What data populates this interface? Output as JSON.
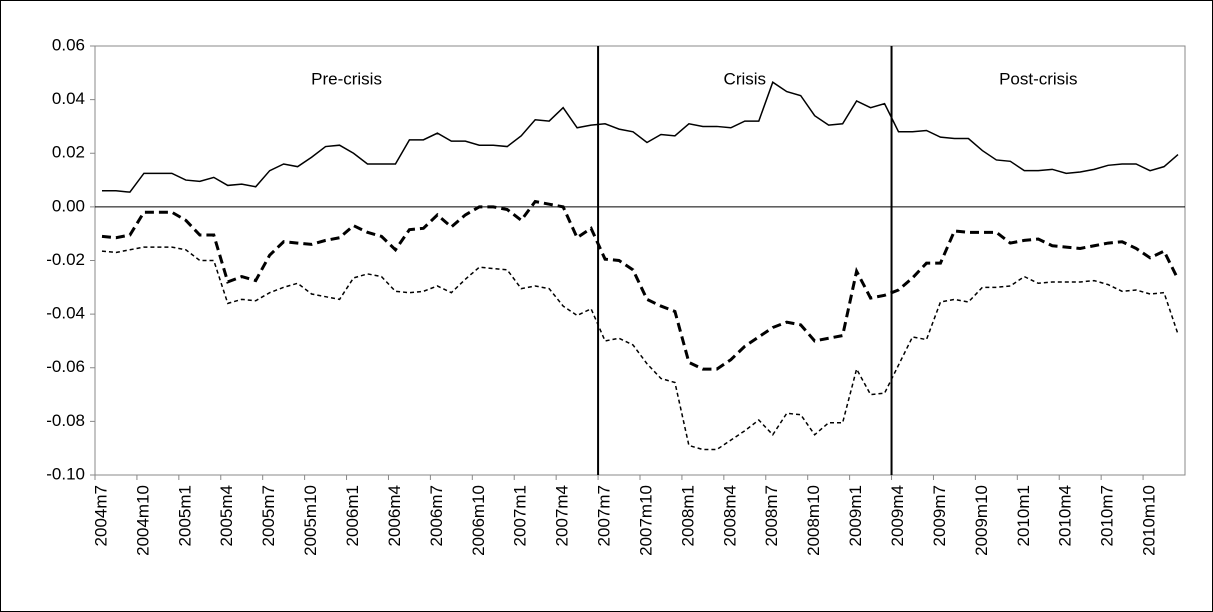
{
  "chart_data": {
    "type": "line",
    "categories": [
      "2004m7",
      null,
      null,
      "2004m10",
      null,
      null,
      "2005m1",
      null,
      null,
      "2005m4",
      null,
      null,
      "2005m7",
      null,
      null,
      "2005m10",
      null,
      null,
      "2006m1",
      null,
      null,
      "2006m4",
      null,
      null,
      "2006m7",
      null,
      null,
      "2006m10",
      null,
      null,
      "2007m1",
      null,
      null,
      "2007m4",
      null,
      null,
      "2007m7",
      null,
      null,
      "2007m10",
      null,
      null,
      "2008m1",
      null,
      null,
      "2008m4",
      null,
      null,
      "2008m7",
      null,
      null,
      "2008m10",
      null,
      null,
      "2009m1",
      null,
      null,
      "2009m4",
      null,
      null,
      "2009m7",
      null,
      null,
      "2009m10",
      null,
      null,
      "2010m1",
      null,
      null,
      "2010m4",
      null,
      null,
      "2010m7",
      null,
      null,
      "2010m10",
      null,
      null
    ],
    "series": [
      {
        "color": "#000000",
        "style": "solid",
        "width": 1.5,
        "values": [
          0.006,
          0.006,
          0.0055,
          0.0125,
          0.0125,
          0.0125,
          0.01,
          0.0095,
          0.011,
          0.008,
          0.0085,
          0.0075,
          0.0135,
          0.016,
          0.015,
          0.0185,
          0.0225,
          0.023,
          0.02,
          0.016,
          0.016,
          0.016,
          0.025,
          0.025,
          0.0275,
          0.0245,
          0.0245,
          0.023,
          0.023,
          0.0225,
          0.0265,
          0.0325,
          0.032,
          0.037,
          0.0295,
          0.0305,
          0.031,
          0.029,
          0.028,
          0.024,
          0.027,
          0.0265,
          0.031,
          0.03,
          0.03,
          0.0295,
          0.032,
          0.032,
          0.0465,
          0.043,
          0.0415,
          0.034,
          0.0305,
          0.031,
          0.0395,
          0.037,
          0.0385,
          0.028,
          0.028,
          0.0285,
          0.026,
          0.0255,
          0.0255,
          0.021,
          0.0175,
          0.017,
          0.0135,
          0.0135,
          0.014,
          0.0125,
          0.013,
          0.014,
          0.0155,
          0.016,
          0.016,
          0.0135,
          0.015,
          0.0195
        ]
      },
      {
        "color": "#000000",
        "style": "dashed",
        "width": 3,
        "values": [
          -0.011,
          -0.0115,
          -0.0105,
          -0.002,
          -0.002,
          -0.002,
          -0.005,
          -0.0105,
          -0.0105,
          -0.028,
          -0.026,
          -0.0275,
          -0.018,
          -0.013,
          -0.0135,
          -0.014,
          -0.0125,
          -0.0115,
          -0.007,
          -0.0095,
          -0.011,
          -0.016,
          -0.0085,
          -0.008,
          -0.003,
          -0.0075,
          -0.003,
          0.0,
          0.0,
          -0.001,
          -0.005,
          0.002,
          0.001,
          0.0,
          -0.0115,
          -0.008,
          -0.0195,
          -0.02,
          -0.0235,
          -0.0345,
          -0.037,
          -0.039,
          -0.058,
          -0.0605,
          -0.0605,
          -0.057,
          -0.052,
          -0.0485,
          -0.045,
          -0.043,
          -0.044,
          -0.05,
          -0.049,
          -0.048,
          -0.024,
          -0.034,
          -0.033,
          -0.031,
          -0.0265,
          -0.021,
          -0.021,
          -0.009,
          -0.0095,
          -0.0095,
          -0.0095,
          -0.0135,
          -0.0125,
          -0.012,
          -0.0145,
          -0.015,
          -0.0155,
          -0.0145,
          -0.0135,
          -0.013,
          -0.0155,
          -0.019,
          -0.0165,
          -0.027
        ]
      },
      {
        "color": "#000000",
        "style": "dotted",
        "width": 1.5,
        "values": [
          -0.0165,
          -0.017,
          -0.016,
          -0.015,
          -0.015,
          -0.015,
          -0.016,
          -0.02,
          -0.02,
          -0.036,
          -0.0345,
          -0.035,
          -0.032,
          -0.03,
          -0.0285,
          -0.0325,
          -0.0335,
          -0.0345,
          -0.0265,
          -0.025,
          -0.026,
          -0.0315,
          -0.032,
          -0.0315,
          -0.0295,
          -0.032,
          -0.027,
          -0.0225,
          -0.023,
          -0.0235,
          -0.0305,
          -0.0295,
          -0.0305,
          -0.037,
          -0.0405,
          -0.038,
          -0.05,
          -0.049,
          -0.0515,
          -0.0585,
          -0.064,
          -0.0655,
          -0.089,
          -0.0905,
          -0.0905,
          -0.087,
          -0.0835,
          -0.0795,
          -0.085,
          -0.077,
          -0.0775,
          -0.085,
          -0.0805,
          -0.0805,
          -0.0605,
          -0.07,
          -0.0695,
          -0.059,
          -0.0485,
          -0.0495,
          -0.0355,
          -0.0345,
          -0.0355,
          -0.03,
          -0.03,
          -0.0295,
          -0.026,
          -0.0285,
          -0.028,
          -0.028,
          -0.028,
          -0.0275,
          -0.029,
          -0.0315,
          -0.031,
          -0.0325,
          -0.032,
          -0.0475
        ]
      }
    ],
    "ylim": [
      -0.1,
      0.06
    ],
    "yticks": [
      {
        "value": -0.1,
        "label": "-0.10"
      },
      {
        "value": -0.08,
        "label": "-0.08"
      },
      {
        "value": -0.06,
        "label": "-0.06"
      },
      {
        "value": -0.04,
        "label": "-0.04"
      },
      {
        "value": -0.02,
        "label": "-0.02"
      },
      {
        "value": 0,
        "label": "0.00"
      },
      {
        "value": 0.02,
        "label": "0.02"
      },
      {
        "value": 0.04,
        "label": "0.04"
      },
      {
        "value": 0.06,
        "label": "0.06"
      }
    ],
    "grid": false,
    "periods": [
      {
        "label": "Pre-crisis",
        "from": "2004m7"
      },
      {
        "label": "Crisis",
        "from": "2007m7"
      },
      {
        "label": "Post-crisis",
        "from": "2009m4"
      }
    ]
  }
}
